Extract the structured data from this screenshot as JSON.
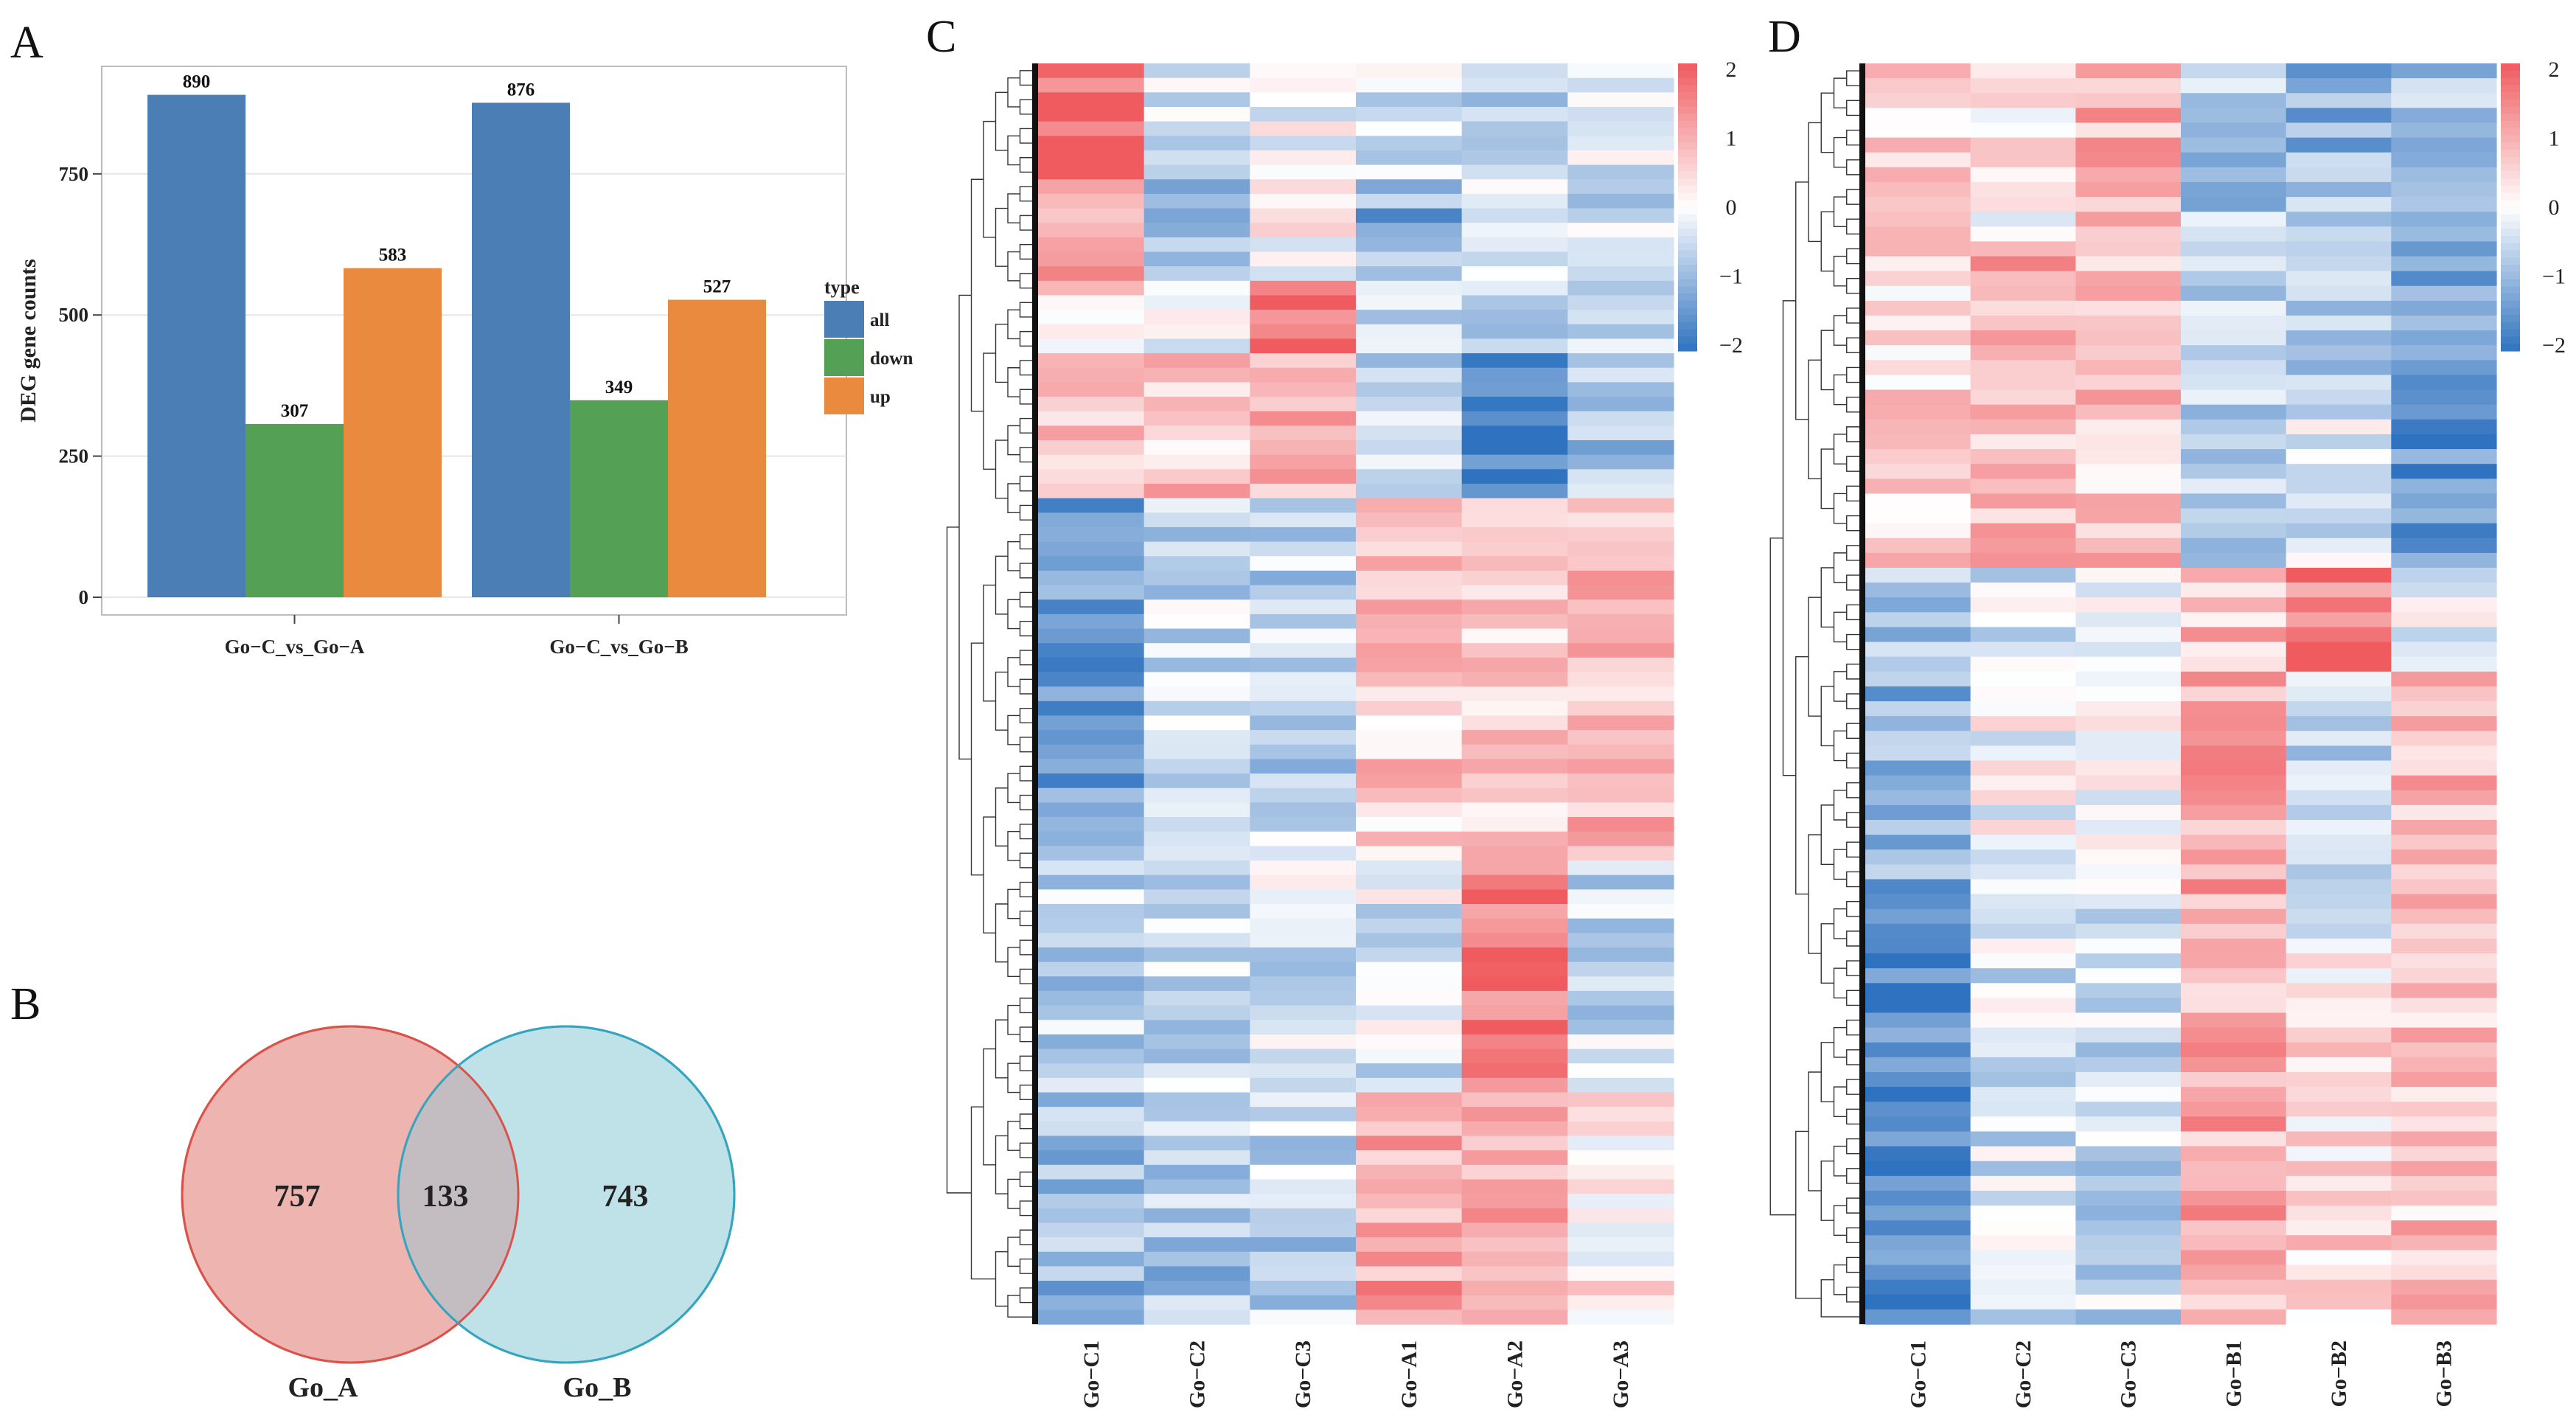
{
  "panels": {
    "a": "A",
    "b": "B",
    "c": "C",
    "d": "D"
  },
  "colors": {
    "all": "#4a7eb5",
    "down": "#54a155",
    "up": "#ea8a3f",
    "venn_a_fill": "#eeb4b0",
    "venn_a_stroke": "#d9534a",
    "venn_b_fill": "#bfe1e8",
    "venn_b_stroke": "#35a5bf",
    "venn_overlap": "#c3bcc0",
    "heat_low": "#2f72bf",
    "heat_mid": "#ffffff",
    "heat_high": "#ef5b5f"
  },
  "chart_data": [
    {
      "panel": "A",
      "type": "bar",
      "ylabel": "DEG gene counts",
      "xlabel": "",
      "ylim": [
        0,
        930
      ],
      "yticks": [
        0,
        250,
        500,
        750
      ],
      "grid": true,
      "categories": [
        "Go−C_vs_Go−A",
        "Go−C_vs_Go−B"
      ],
      "series": [
        {
          "name": "all",
          "values": [
            890,
            876
          ]
        },
        {
          "name": "down",
          "values": [
            307,
            349
          ]
        },
        {
          "name": "up",
          "values": [
            583,
            527
          ]
        }
      ],
      "legend": {
        "title": "type",
        "position": "right",
        "entries": [
          "all",
          "down",
          "up"
        ]
      }
    },
    {
      "panel": "B",
      "type": "venn",
      "sets": [
        {
          "name": "Go_A",
          "only": 757
        },
        {
          "name": "Go_B",
          "only": 743
        }
      ],
      "overlap": 133
    },
    {
      "panel": "C",
      "type": "heatmap",
      "columns": [
        "Go−C1",
        "Go−C2",
        "Go−C3",
        "Go−A1",
        "Go−A2",
        "Go−A3"
      ],
      "colorbar": {
        "range": [
          -2,
          2
        ],
        "ticks": [
          "2",
          "1",
          "0",
          "−1",
          "−2"
        ]
      },
      "dendrogram": "rows",
      "blocks": [
        {
          "rows": 8,
          "means": [
            1.7,
            -0.4,
            -0.1,
            -0.5,
            -0.7,
            -0.3
          ]
        },
        {
          "rows": 7,
          "means": [
            1.0,
            -0.8,
            0.2,
            -1.1,
            -0.2,
            -0.4
          ]
        },
        {
          "rows": 5,
          "means": [
            0.5,
            -0.3,
            1.8,
            -0.6,
            -0.9,
            -0.8
          ]
        },
        {
          "rows": 10,
          "means": [
            0.8,
            0.7,
            0.8,
            -0.4,
            -1.6,
            -0.9
          ]
        },
        {
          "rows": 25,
          "means": [
            -1.5,
            -0.5,
            -0.6,
            0.6,
            0.7,
            0.8
          ]
        },
        {
          "rows": 16,
          "means": [
            -0.6,
            -0.5,
            -0.4,
            -0.3,
            1.7,
            -0.5
          ]
        },
        {
          "rows": 16,
          "means": [
            -1.0,
            -0.8,
            -0.6,
            1.1,
            0.9,
            0.3
          ]
        }
      ]
    },
    {
      "panel": "D",
      "type": "heatmap",
      "columns": [
        "Go−C1",
        "Go−C2",
        "Go−C3",
        "Go−B1",
        "Go−B2",
        "Go−B3"
      ],
      "colorbar": {
        "range": [
          -2,
          2
        ],
        "ticks": [
          "2",
          "1",
          "0",
          "−1",
          "−2"
        ]
      },
      "dendrogram": "rows",
      "blocks": [
        {
          "rows": 12,
          "means": [
            0.6,
            0.3,
            0.9,
            -0.7,
            -1.0,
            -0.7
          ]
        },
        {
          "rows": 10,
          "means": [
            0.3,
            1.0,
            0.7,
            -0.8,
            -0.6,
            -1.1
          ]
        },
        {
          "rows": 12,
          "means": [
            0.6,
            0.7,
            0.7,
            -0.6,
            -0.4,
            -1.6
          ]
        },
        {
          "rows": 7,
          "means": [
            -0.7,
            -0.4,
            -0.3,
            0.8,
            1.5,
            -0.2
          ]
        },
        {
          "rows": 18,
          "means": [
            -1.1,
            0.0,
            -0.2,
            1.1,
            -0.6,
            0.8
          ]
        },
        {
          "rows": 26,
          "means": [
            -1.6,
            -0.4,
            -0.5,
            1.0,
            0.4,
            0.7
          ]
        }
      ]
    }
  ]
}
